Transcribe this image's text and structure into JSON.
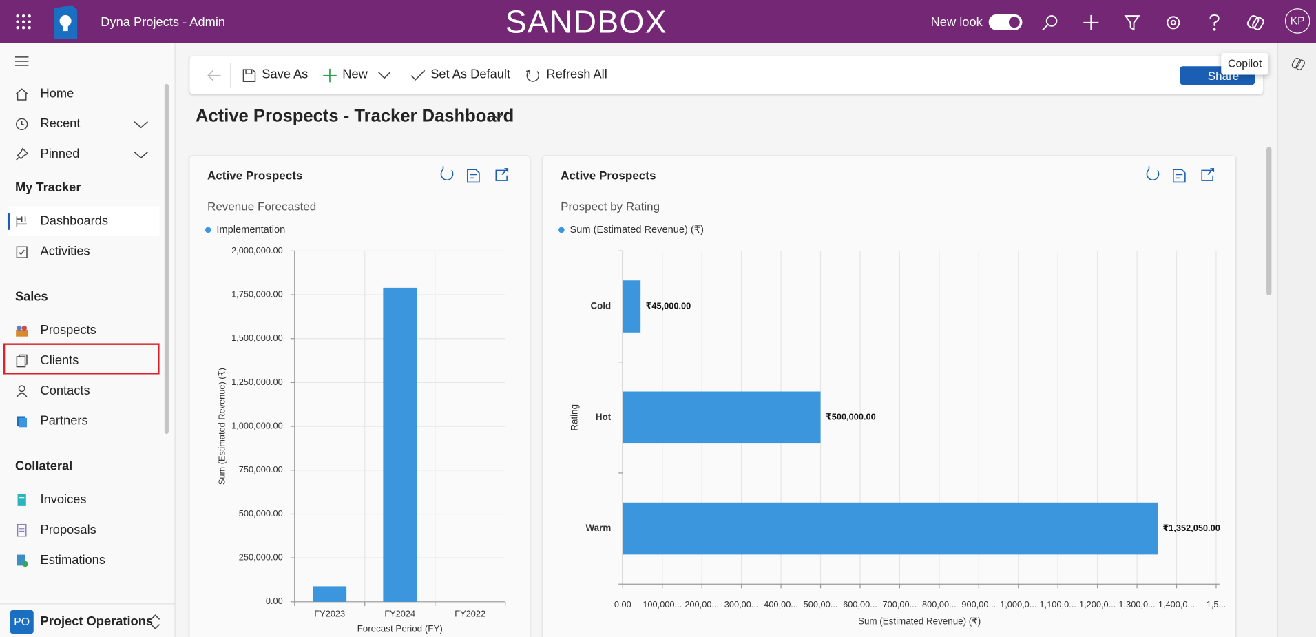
{
  "header": {
    "app_name": "Dyna Projects - Admin",
    "environment": "SANDBOX",
    "new_look": "New look",
    "user_initials": "KP",
    "tooltip": "Copilot"
  },
  "sidebar": {
    "nav": [
      "Home",
      "Recent",
      "Pinned"
    ],
    "sections": [
      {
        "title": "My Tracker",
        "items": [
          "Dashboards",
          "Activities"
        ]
      },
      {
        "title": "Sales",
        "items": [
          "Prospects",
          "Clients",
          "Contacts",
          "Partners"
        ]
      },
      {
        "title": "Collateral",
        "items": [
          "Invoices",
          "Proposals",
          "Estimations"
        ]
      }
    ],
    "area_badge": "PO",
    "area_name": "Project Operations"
  },
  "toolbar": {
    "buttons": [
      "Save As",
      "New",
      "Set As Default",
      "Refresh All"
    ],
    "share": "Share"
  },
  "dashboard": {
    "title": "Active Prospects - Tracker Dashboard"
  },
  "chart_data": [
    {
      "type": "bar",
      "orientation": "vertical",
      "title": "Active Prospects",
      "subtitle": "Revenue Forecasted",
      "x_label": "Forecast Period (FY)",
      "y_label": "Sum (Estimated Revenue) (₹)",
      "categories": [
        "FY2023",
        "FY2024",
        "FY2022"
      ],
      "series": [
        {
          "name": "Implementation",
          "color": "#3b96dd",
          "values": [
            88000,
            1790000,
            null
          ]
        }
      ],
      "ylim": [
        0,
        2000000
      ],
      "yticks": [
        {
          "value": 0,
          "label": "0.00"
        },
        {
          "value": 250000,
          "label": "250,000.00"
        },
        {
          "value": 500000,
          "label": "500,000.00"
        },
        {
          "value": 750000,
          "label": "750,000.00"
        },
        {
          "value": 1000000,
          "label": "1,000,000.00"
        },
        {
          "value": 1250000,
          "label": "1,250,000.00"
        },
        {
          "value": 1500000,
          "label": "1,500,000.00"
        },
        {
          "value": 1750000,
          "label": "1,750,000.00"
        },
        {
          "value": 2000000,
          "label": "2,000,000.00"
        }
      ],
      "grid": true
    },
    {
      "type": "bar",
      "orientation": "horizontal",
      "title": "Active Prospects",
      "subtitle": "Prospect by Rating",
      "x_label": "Sum (Estimated Revenue) (₹)",
      "y_label": "Rating",
      "categories": [
        "Cold",
        "Hot",
        "Warm"
      ],
      "series": [
        {
          "name": "Sum (Estimated Revenue) (₹)",
          "color": "#3b96dd",
          "values": [
            45000,
            500000,
            1352050
          ],
          "value_labels": [
            "₹45,000.00",
            "₹500,000.00",
            "₹1,352,050.00"
          ]
        }
      ],
      "xlim": [
        0,
        1500000
      ],
      "xticks": [
        {
          "value": 0,
          "label": "0.00"
        },
        {
          "value": 100000,
          "label": "100,000..."
        },
        {
          "value": 200000,
          "label": "200,00..."
        },
        {
          "value": 300000,
          "label": "300,00..."
        },
        {
          "value": 400000,
          "label": "400,00..."
        },
        {
          "value": 500000,
          "label": "500,00..."
        },
        {
          "value": 600000,
          "label": "600,00..."
        },
        {
          "value": 700000,
          "label": "700,00..."
        },
        {
          "value": 800000,
          "label": "800,00..."
        },
        {
          "value": 900000,
          "label": "900,00..."
        },
        {
          "value": 1000000,
          "label": "1,000,0..."
        },
        {
          "value": 1100000,
          "label": "1,100,0..."
        },
        {
          "value": 1200000,
          "label": "1,200,0..."
        },
        {
          "value": 1300000,
          "label": "1,300,0..."
        },
        {
          "value": 1400000,
          "label": "1,400,0..."
        },
        {
          "value": 1500000,
          "label": "1,5..."
        }
      ],
      "grid": true
    }
  ]
}
